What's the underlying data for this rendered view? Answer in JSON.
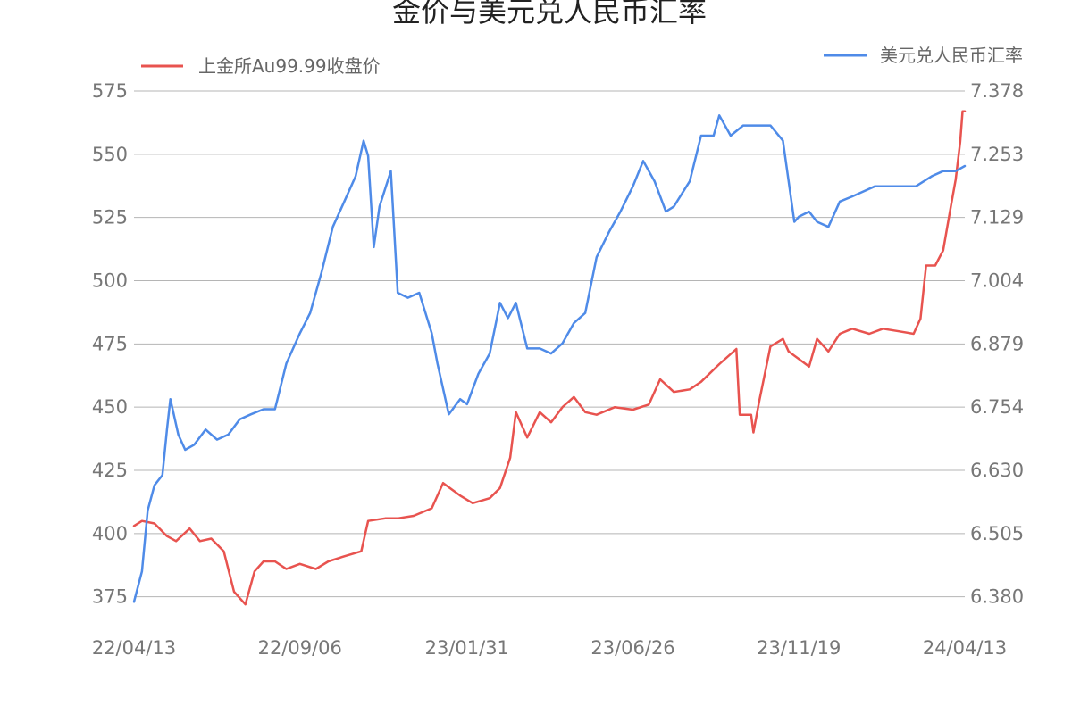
{
  "chart_data": {
    "type": "line",
    "title": "金价与美元兑人民币汇率",
    "x_tick_labels": [
      "22/04/13",
      "22/09/06",
      "23/01/31",
      "23/06/26",
      "23/11/19",
      "24/04/13"
    ],
    "y_left": {
      "ticks": [
        "575",
        "550",
        "525",
        "500",
        "475",
        "450",
        "425",
        "400",
        "375"
      ],
      "min": 365,
      "max": 575
    },
    "y_right": {
      "ticks": [
        "7.378",
        "7.253",
        "7.129",
        "7.004",
        "6.879",
        "6.754",
        "6.630",
        "6.505",
        "6.380"
      ],
      "min": 6.33,
      "max": 7.378
    },
    "grid": "horizontal",
    "legend": {
      "left_placement": "top-left",
      "right_placement": "top-right"
    },
    "series": [
      {
        "name": "上金所Au99.99收盘价",
        "axis": "left",
        "color": "#e8534f",
        "points": [
          [
            "22/04/13",
            403
          ],
          [
            "22/04/20",
            405
          ],
          [
            "22/05/01",
            404
          ],
          [
            "22/05/12",
            399
          ],
          [
            "22/05/20",
            397
          ],
          [
            "22/06/01",
            402
          ],
          [
            "22/06/10",
            397
          ],
          [
            "22/06/20",
            398
          ],
          [
            "22/07/01",
            393
          ],
          [
            "22/07/10",
            377
          ],
          [
            "22/07/20",
            372
          ],
          [
            "22/07/28",
            385
          ],
          [
            "22/08/05",
            389
          ],
          [
            "22/08/15",
            389
          ],
          [
            "22/08/25",
            386
          ],
          [
            "22/09/06",
            388
          ],
          [
            "22/09/20",
            386
          ],
          [
            "22/10/01",
            389
          ],
          [
            "22/10/15",
            391
          ],
          [
            "22/10/30",
            393
          ],
          [
            "22/11/05",
            405
          ],
          [
            "22/11/20",
            406
          ],
          [
            "22/12/01",
            406
          ],
          [
            "22/12/15",
            407
          ],
          [
            "22/12/31",
            410
          ],
          [
            "23/01/10",
            420
          ],
          [
            "23/01/25",
            415
          ],
          [
            "23/02/05",
            412
          ],
          [
            "23/02/20",
            414
          ],
          [
            "23/03/01",
            418
          ],
          [
            "23/03/10",
            430
          ],
          [
            "23/03/15",
            448
          ],
          [
            "23/03/25",
            438
          ],
          [
            "23/04/05",
            448
          ],
          [
            "23/04/15",
            444
          ],
          [
            "23/04/25",
            450
          ],
          [
            "23/05/05",
            454
          ],
          [
            "23/05/15",
            448
          ],
          [
            "23/05/25",
            447
          ],
          [
            "23/06/10",
            450
          ],
          [
            "23/06/26",
            449
          ],
          [
            "23/07/10",
            451
          ],
          [
            "23/07/20",
            461
          ],
          [
            "23/08/01",
            456
          ],
          [
            "23/08/15",
            457
          ],
          [
            "23/08/25",
            460
          ],
          [
            "23/09/10",
            467
          ],
          [
            "23/09/25",
            473
          ],
          [
            "23/09/28",
            447
          ],
          [
            "23/10/08",
            447
          ],
          [
            "23/10/10",
            440
          ],
          [
            "23/10/15",
            452
          ],
          [
            "23/10/25",
            474
          ],
          [
            "23/11/05",
            477
          ],
          [
            "23/11/10",
            472
          ],
          [
            "23/11/19",
            469
          ],
          [
            "23/11/28",
            466
          ],
          [
            "23/12/05",
            477
          ],
          [
            "23/12/15",
            472
          ],
          [
            "23/12/25",
            479
          ],
          [
            "24/01/05",
            481
          ],
          [
            "24/01/20",
            479
          ],
          [
            "24/02/01",
            481
          ],
          [
            "24/02/15",
            480
          ],
          [
            "24/02/28",
            479
          ],
          [
            "24/03/05",
            485
          ],
          [
            "24/03/10",
            506
          ],
          [
            "24/03/18",
            506
          ],
          [
            "24/03/25",
            512
          ],
          [
            "24/04/01",
            530
          ],
          [
            "24/04/05",
            540
          ],
          [
            "24/04/09",
            555
          ],
          [
            "24/04/11",
            567
          ],
          [
            "24/04/13",
            567
          ]
        ]
      },
      {
        "name": "美元兑人民币汇率",
        "axis": "right",
        "color": "#4f8be8",
        "points": [
          [
            "22/04/13",
            6.37
          ],
          [
            "22/04/20",
            6.43
          ],
          [
            "22/04/25",
            6.55
          ],
          [
            "22/05/01",
            6.6
          ],
          [
            "22/05/08",
            6.62
          ],
          [
            "22/05/12",
            6.71
          ],
          [
            "22/05/15",
            6.77
          ],
          [
            "22/05/22",
            6.7
          ],
          [
            "22/05/28",
            6.67
          ],
          [
            "22/06/05",
            6.68
          ],
          [
            "22/06/15",
            6.71
          ],
          [
            "22/06/25",
            6.69
          ],
          [
            "22/07/05",
            6.7
          ],
          [
            "22/07/15",
            6.73
          ],
          [
            "22/07/25",
            6.74
          ],
          [
            "22/08/05",
            6.75
          ],
          [
            "22/08/15",
            6.75
          ],
          [
            "22/08/25",
            6.84
          ],
          [
            "22/09/06",
            6.9
          ],
          [
            "22/09/15",
            6.94
          ],
          [
            "22/09/25",
            7.02
          ],
          [
            "22/10/05",
            7.11
          ],
          [
            "22/10/15",
            7.16
          ],
          [
            "22/10/25",
            7.21
          ],
          [
            "22/11/01",
            7.28
          ],
          [
            "22/11/05",
            7.25
          ],
          [
            "22/11/10",
            7.07
          ],
          [
            "22/11/15",
            7.15
          ],
          [
            "22/11/25",
            7.22
          ],
          [
            "22/12/01",
            6.98
          ],
          [
            "22/12/10",
            6.97
          ],
          [
            "22/12/20",
            6.98
          ],
          [
            "22/12/31",
            6.9
          ],
          [
            "23/01/05",
            6.84
          ],
          [
            "23/01/15",
            6.74
          ],
          [
            "23/01/25",
            6.77
          ],
          [
            "23/01/31",
            6.76
          ],
          [
            "23/02/10",
            6.82
          ],
          [
            "23/02/20",
            6.86
          ],
          [
            "23/03/01",
            6.96
          ],
          [
            "23/03/08",
            6.93
          ],
          [
            "23/03/15",
            6.96
          ],
          [
            "23/03/25",
            6.87
          ],
          [
            "23/04/05",
            6.87
          ],
          [
            "23/04/15",
            6.86
          ],
          [
            "23/04/25",
            6.88
          ],
          [
            "23/05/05",
            6.92
          ],
          [
            "23/05/15",
            6.94
          ],
          [
            "23/05/25",
            7.05
          ],
          [
            "23/06/05",
            7.1
          ],
          [
            "23/06/15",
            7.14
          ],
          [
            "23/06/26",
            7.19
          ],
          [
            "23/07/05",
            7.24
          ],
          [
            "23/07/15",
            7.2
          ],
          [
            "23/07/25",
            7.14
          ],
          [
            "23/08/01",
            7.15
          ],
          [
            "23/08/15",
            7.2
          ],
          [
            "23/08/25",
            7.29
          ],
          [
            "23/09/05",
            7.29
          ],
          [
            "23/09/10",
            7.33
          ],
          [
            "23/09/20",
            7.29
          ],
          [
            "23/10/01",
            7.31
          ],
          [
            "23/10/15",
            7.31
          ],
          [
            "23/10/25",
            7.31
          ],
          [
            "23/11/05",
            7.28
          ],
          [
            "23/11/10",
            7.2
          ],
          [
            "23/11/15",
            7.12
          ],
          [
            "23/11/19",
            7.13
          ],
          [
            "23/11/28",
            7.14
          ],
          [
            "23/12/05",
            7.12
          ],
          [
            "23/12/15",
            7.11
          ],
          [
            "23/12/25",
            7.16
          ],
          [
            "24/01/05",
            7.17
          ],
          [
            "24/01/15",
            7.18
          ],
          [
            "24/01/25",
            7.19
          ],
          [
            "24/02/05",
            7.19
          ],
          [
            "24/02/20",
            7.19
          ],
          [
            "24/03/01",
            7.19
          ],
          [
            "24/03/15",
            7.21
          ],
          [
            "24/03/25",
            7.22
          ],
          [
            "24/04/05",
            7.22
          ],
          [
            "24/04/13",
            7.23
          ]
        ]
      }
    ]
  }
}
